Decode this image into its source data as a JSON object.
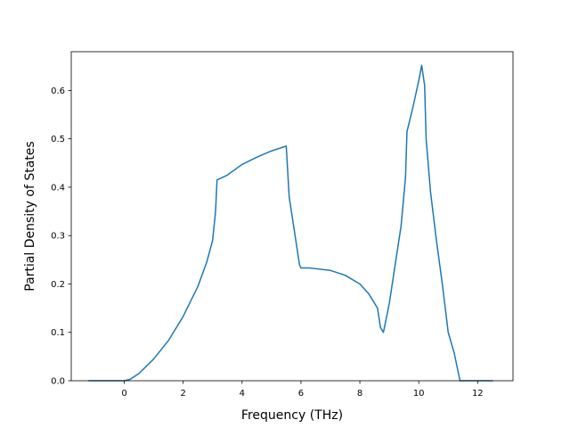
{
  "chart_data": {
    "type": "line",
    "title": "",
    "xlabel": "Frequency (THz)",
    "ylabel": "Partial Density of States",
    "xlim": [
      -1.8,
      13.2
    ],
    "ylim": [
      0.0,
      0.68
    ],
    "xticks": [
      0,
      2,
      4,
      6,
      8,
      10,
      12
    ],
    "yticks": [
      0.0,
      0.1,
      0.2,
      0.3,
      0.4,
      0.5,
      0.6
    ],
    "xtick_labels": [
      "0",
      "2",
      "4",
      "6",
      "8",
      "10",
      "12"
    ],
    "ytick_labels": [
      "0.0",
      "0.1",
      "0.2",
      "0.3",
      "0.4",
      "0.5",
      "0.6"
    ],
    "grid": false,
    "legend": null,
    "series": [
      {
        "color": "#1f77b4",
        "x": [
          -1.2,
          -0.6,
          0.0,
          0.2,
          0.5,
          1.0,
          1.5,
          2.0,
          2.5,
          2.8,
          3.0,
          3.1,
          3.15,
          3.5,
          4.0,
          4.5,
          5.0,
          5.3,
          5.5,
          5.6,
          5.8,
          5.95,
          6.0,
          6.3,
          7.0,
          7.5,
          8.0,
          8.3,
          8.6,
          8.7,
          8.8,
          9.0,
          9.2,
          9.4,
          9.55,
          9.6,
          9.8,
          10.0,
          10.1,
          10.2,
          10.25,
          10.4,
          10.6,
          10.8,
          11.0,
          11.2,
          11.4,
          11.8,
          12.5
        ],
        "y": [
          0.0,
          0.0,
          0.0,
          0.003,
          0.015,
          0.045,
          0.083,
          0.133,
          0.195,
          0.245,
          0.29,
          0.35,
          0.415,
          0.425,
          0.447,
          0.462,
          0.475,
          0.481,
          0.485,
          0.38,
          0.3,
          0.24,
          0.233,
          0.233,
          0.228,
          0.218,
          0.2,
          0.18,
          0.15,
          0.11,
          0.1,
          0.16,
          0.24,
          0.32,
          0.42,
          0.515,
          0.565,
          0.62,
          0.652,
          0.61,
          0.5,
          0.39,
          0.29,
          0.2,
          0.1,
          0.058,
          0.0,
          0.0,
          0.0
        ]
      }
    ]
  }
}
